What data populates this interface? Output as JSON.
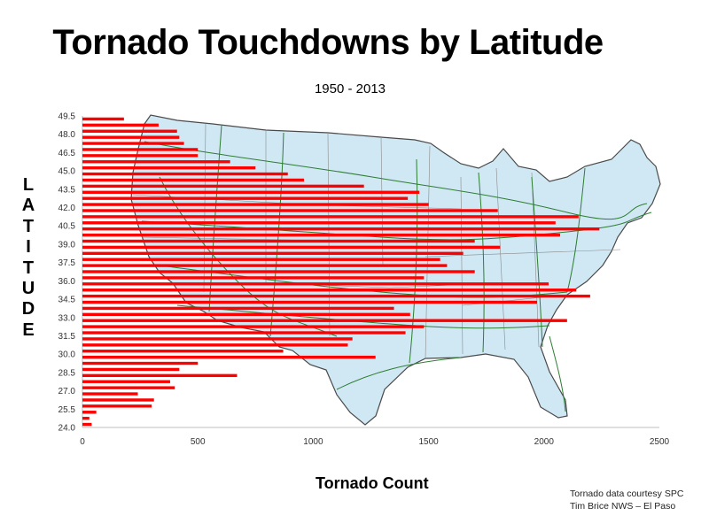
{
  "title": "Tornado Touchdowns by Latitude",
  "subtitle": "1950 - 2013",
  "credits": [
    "Tornado data courtesy SPC",
    "Tim Brice NWS – El Paso"
  ],
  "colors": {
    "bar": "#ff0000",
    "map_fill": "#cfe8f4",
    "map_outline": "#4a4a4a",
    "highways": "#2e7d32",
    "axis": "#bfbfbf"
  },
  "chart_data": {
    "type": "bar",
    "orientation": "horizontal",
    "background": "map of the United States with highways",
    "xlabel": "Tornado Count",
    "ylabel": "LATITUDE",
    "xlim": [
      0,
      2500
    ],
    "x_ticks": [
      "0",
      "500",
      "1000",
      "1500",
      "2000",
      "2500"
    ],
    "y_ticks": [
      "24.0",
      "25.5",
      "27.0",
      "28.5",
      "30.0",
      "31.5",
      "33.0",
      "34.5",
      "36.0",
      "37.5",
      "39.0",
      "40.5",
      "42.0",
      "43.5",
      "45.0",
      "46.5",
      "48.0",
      "49.5"
    ],
    "grid": false,
    "latitudes": [
      24.0,
      24.5,
      25.0,
      25.5,
      26.0,
      26.5,
      27.0,
      27.5,
      28.0,
      28.5,
      29.0,
      29.5,
      30.0,
      30.5,
      31.0,
      31.5,
      32.0,
      32.5,
      33.0,
      33.5,
      34.0,
      34.5,
      35.0,
      35.5,
      36.0,
      36.5,
      37.0,
      37.5,
      38.0,
      38.5,
      39.0,
      39.5,
      40.0,
      40.5,
      41.0,
      41.5,
      42.0,
      42.5,
      43.0,
      43.5,
      44.0,
      44.5,
      45.0,
      45.5,
      46.0,
      46.5,
      47.0,
      47.5,
      48.0,
      48.5,
      49.0
    ],
    "values": [
      40,
      30,
      60,
      300,
      310,
      240,
      400,
      380,
      670,
      420,
      500,
      1270,
      870,
      1150,
      1170,
      1400,
      1480,
      2100,
      1420,
      1350,
      1970,
      2200,
      2140,
      2020,
      1480,
      1700,
      1580,
      1550,
      1650,
      1810,
      1700,
      2070,
      2240,
      2050,
      2150,
      1800,
      1500,
      1410,
      1460,
      1220,
      960,
      890,
      750,
      640,
      500,
      500,
      440,
      420,
      410,
      330,
      180
    ]
  }
}
